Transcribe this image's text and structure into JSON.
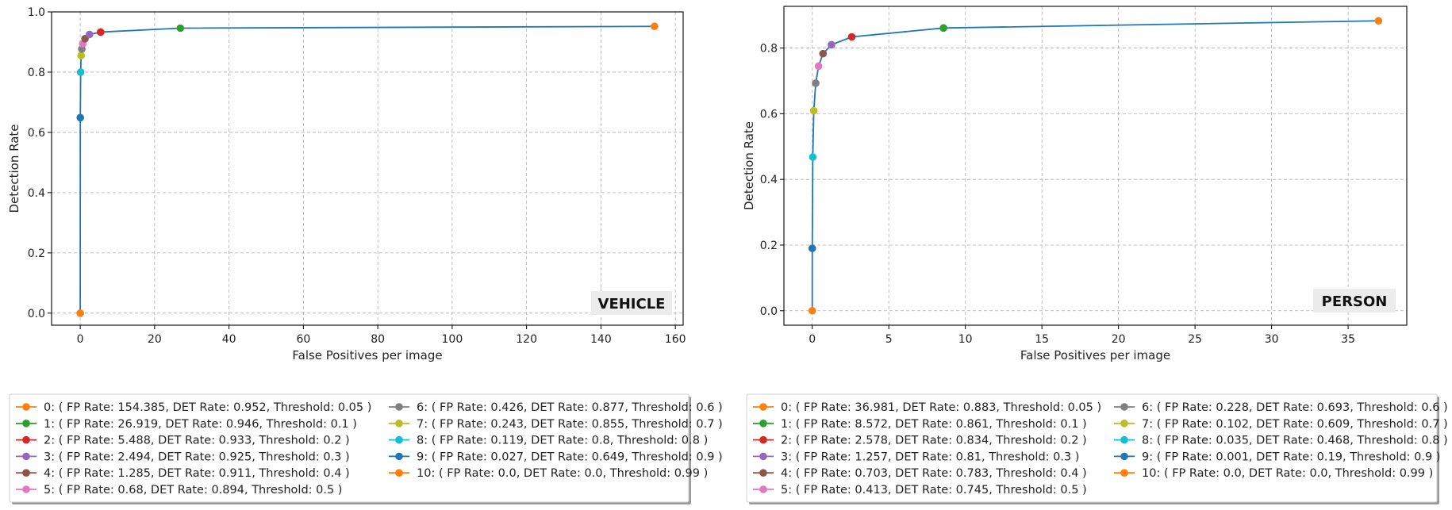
{
  "chart_data": [
    {
      "type": "line",
      "title": "",
      "badge": "VEHICLE",
      "xlabel": "False Positives per image",
      "ylabel": "Detection Rate",
      "xlim": [
        -7.7,
        162.1
      ],
      "ylim": [
        -0.04,
        1.0
      ],
      "xticks": [
        0,
        20,
        40,
        60,
        80,
        100,
        120,
        140,
        160
      ],
      "yticks": [
        0.0,
        0.2,
        0.4,
        0.6,
        0.8,
        1.0
      ],
      "grid": true,
      "line_color": "#1f77b4",
      "points": [
        {
          "fp": 154.385,
          "det": 0.952,
          "threshold": 0.05,
          "color": "#ff7f0e",
          "label": "0: ( FP Rate: 154.385, DET Rate: 0.952, Threshold: 0.05 )"
        },
        {
          "fp": 26.919,
          "det": 0.946,
          "threshold": 0.1,
          "color": "#2ca02c",
          "label": "1: ( FP Rate: 26.919, DET Rate: 0.946, Threshold: 0.1 )"
        },
        {
          "fp": 5.488,
          "det": 0.933,
          "threshold": 0.2,
          "color": "#d62728",
          "label": "2: ( FP Rate: 5.488, DET Rate: 0.933, Threshold: 0.2 )"
        },
        {
          "fp": 2.494,
          "det": 0.925,
          "threshold": 0.3,
          "color": "#9467bd",
          "label": "3: ( FP Rate: 2.494, DET Rate: 0.925, Threshold: 0.3 )"
        },
        {
          "fp": 1.285,
          "det": 0.911,
          "threshold": 0.4,
          "color": "#8c564b",
          "label": "4: ( FP Rate: 1.285, DET Rate: 0.911, Threshold: 0.4 )"
        },
        {
          "fp": 0.68,
          "det": 0.894,
          "threshold": 0.5,
          "color": "#e377c2",
          "label": "5: ( FP Rate: 0.68, DET Rate: 0.894, Threshold: 0.5 )"
        },
        {
          "fp": 0.426,
          "det": 0.877,
          "threshold": 0.6,
          "color": "#7f7f7f",
          "label": "6: ( FP Rate: 0.426, DET Rate: 0.877, Threshold: 0.6 )"
        },
        {
          "fp": 0.243,
          "det": 0.855,
          "threshold": 0.7,
          "color": "#bcbd22",
          "label": "7: ( FP Rate: 0.243, DET Rate: 0.855, Threshold: 0.7 )"
        },
        {
          "fp": 0.119,
          "det": 0.8,
          "threshold": 0.8,
          "color": "#17becf",
          "label": "8: ( FP Rate: 0.119, DET Rate: 0.8, Threshold: 0.8 )"
        },
        {
          "fp": 0.027,
          "det": 0.649,
          "threshold": 0.9,
          "color": "#1f77b4",
          "label": "9: ( FP Rate: 0.027, DET Rate: 0.649, Threshold: 0.9 )"
        },
        {
          "fp": 0.0,
          "det": 0.0,
          "threshold": 0.99,
          "color": "#ff7f0e",
          "label": "10: ( FP Rate: 0.0, DET Rate: 0.0, Threshold: 0.99 )"
        }
      ]
    },
    {
      "type": "line",
      "title": "",
      "badge": "PERSON",
      "xlabel": "False Positives per image",
      "ylabel": "Detection Rate",
      "xlim": [
        -1.85,
        38.83
      ],
      "ylim": [
        -0.044,
        0.927
      ],
      "xticks": [
        0,
        5,
        10,
        15,
        20,
        25,
        30,
        35
      ],
      "yticks": [
        0.0,
        0.2,
        0.4,
        0.6,
        0.8
      ],
      "grid": true,
      "line_color": "#1f77b4",
      "points": [
        {
          "fp": 36.981,
          "det": 0.883,
          "threshold": 0.05,
          "color": "#ff7f0e",
          "label": "0: ( FP Rate: 36.981, DET Rate: 0.883, Threshold: 0.05 )"
        },
        {
          "fp": 8.572,
          "det": 0.861,
          "threshold": 0.1,
          "color": "#2ca02c",
          "label": "1: ( FP Rate: 8.572, DET Rate: 0.861, Threshold: 0.1 )"
        },
        {
          "fp": 2.578,
          "det": 0.834,
          "threshold": 0.2,
          "color": "#d62728",
          "label": "2: ( FP Rate: 2.578, DET Rate: 0.834, Threshold: 0.2 )"
        },
        {
          "fp": 1.257,
          "det": 0.81,
          "threshold": 0.3,
          "color": "#9467bd",
          "label": "3: ( FP Rate: 1.257, DET Rate: 0.81, Threshold: 0.3 )"
        },
        {
          "fp": 0.703,
          "det": 0.783,
          "threshold": 0.4,
          "color": "#8c564b",
          "label": "4: ( FP Rate: 0.703, DET Rate: 0.783, Threshold: 0.4 )"
        },
        {
          "fp": 0.413,
          "det": 0.745,
          "threshold": 0.5,
          "color": "#e377c2",
          "label": "5: ( FP Rate: 0.413, DET Rate: 0.745, Threshold: 0.5 )"
        },
        {
          "fp": 0.228,
          "det": 0.693,
          "threshold": 0.6,
          "color": "#7f7f7f",
          "label": "6: ( FP Rate: 0.228, DET Rate: 0.693, Threshold: 0.6 )"
        },
        {
          "fp": 0.102,
          "det": 0.609,
          "threshold": 0.7,
          "color": "#bcbd22",
          "label": "7: ( FP Rate: 0.102, DET Rate: 0.609, Threshold: 0.7 )"
        },
        {
          "fp": 0.035,
          "det": 0.468,
          "threshold": 0.8,
          "color": "#17becf",
          "label": "8: ( FP Rate: 0.035, DET Rate: 0.468, Threshold: 0.8 )"
        },
        {
          "fp": 0.001,
          "det": 0.19,
          "threshold": 0.9,
          "color": "#1f77b4",
          "label": "9: ( FP Rate: 0.001, DET Rate: 0.19, Threshold: 0.9 )"
        },
        {
          "fp": 0.0,
          "det": 0.0,
          "threshold": 0.99,
          "color": "#ff7f0e",
          "label": "10: ( FP Rate: 0.0, DET Rate: 0.0, Threshold: 0.99 )"
        }
      ]
    }
  ]
}
